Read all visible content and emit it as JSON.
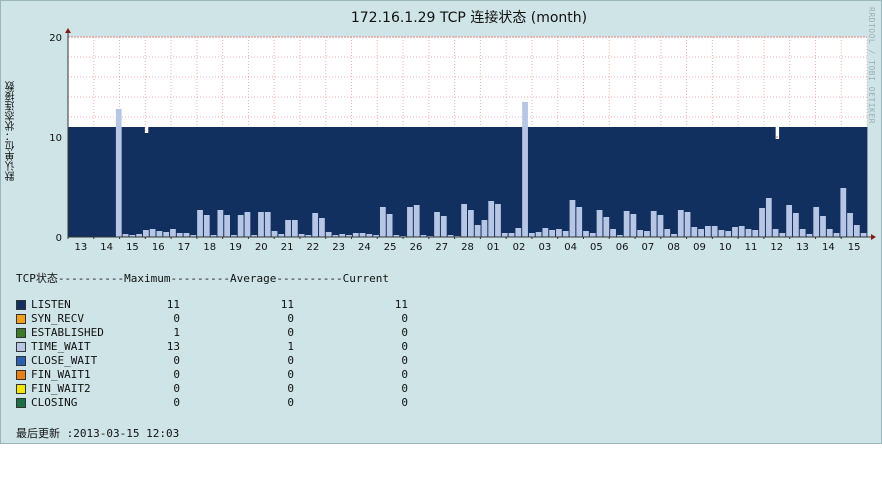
{
  "header": {
    "title": "172.16.1.29 TCP 连接状态 (month)",
    "watermark": "RRDTOOL / TOBI OETIKER",
    "ylabel": "默认单位：状态连接数"
  },
  "chart_data": {
    "type": "bar",
    "title": "172.16.1.29 TCP 连接状态 (month)",
    "ylabel": "默认单位：状态连接数",
    "xlabel": "",
    "ylim": [
      0,
      20
    ],
    "yticks": [
      0,
      10,
      20
    ],
    "grid": true,
    "x_tick_labels": [
      "13",
      "14",
      "15",
      "16",
      "17",
      "18",
      "19",
      "20",
      "21",
      "22",
      "23",
      "24",
      "25",
      "26",
      "27",
      "28",
      "01",
      "02",
      "03",
      "04",
      "05",
      "06",
      "07",
      "08",
      "09",
      "10",
      "11",
      "12",
      "13",
      "14",
      "15"
    ],
    "series": [
      {
        "name": "LISTEN",
        "color": "#12305f",
        "values": [
          11,
          11,
          11,
          11,
          11,
          11,
          11,
          11,
          11,
          11,
          11,
          11,
          11,
          11,
          11,
          11,
          11,
          11,
          11,
          11,
          10.4,
          11,
          11,
          11,
          11,
          11,
          11,
          11,
          11,
          11,
          11,
          11,
          11,
          11,
          11,
          11,
          11,
          11,
          11,
          11,
          11,
          11,
          11,
          11,
          11,
          11,
          11,
          11,
          11,
          11,
          11,
          11,
          11,
          11,
          11,
          11,
          11,
          11,
          11,
          11,
          11,
          11,
          11,
          11,
          11,
          11,
          11,
          11,
          11,
          11,
          11,
          11,
          11,
          11,
          11,
          11,
          11,
          11,
          11,
          11,
          11,
          11,
          11,
          11,
          11,
          11,
          11,
          11,
          11,
          11,
          11,
          11,
          11,
          11,
          11,
          11,
          11,
          11,
          11,
          11,
          11,
          11,
          11,
          11,
          11,
          11,
          11,
          11,
          11,
          11,
          11,
          11,
          11,
          11,
          11,
          11,
          11,
          11,
          11,
          11,
          11,
          11,
          11,
          11,
          11,
          11,
          11,
          11,
          11,
          11,
          11,
          11,
          11,
          11,
          11,
          11,
          11,
          11,
          11,
          11,
          11,
          11,
          11,
          11,
          11,
          11,
          11,
          11,
          11,
          11,
          11,
          11,
          11,
          11,
          11,
          11,
          11,
          11,
          11,
          11,
          11,
          11,
          11,
          11,
          11,
          11,
          11,
          11,
          11,
          11,
          11,
          11,
          11,
          11,
          11,
          11,
          11,
          11,
          11,
          11,
          11,
          11,
          11,
          11,
          11,
          9.8,
          11,
          11,
          11,
          11,
          11,
          11,
          11,
          11,
          11,
          11,
          11,
          11,
          11,
          11,
          11,
          11,
          11,
          11,
          11,
          11,
          11,
          11,
          11
        ]
      },
      {
        "name": "TIME_WAIT",
        "color": "#b8c6e6",
        "values": [
          0,
          0,
          0,
          0,
          0,
          0,
          0,
          12.8,
          0.3,
          0.2,
          0.3,
          0.7,
          0.8,
          0.6,
          0.5,
          0.8,
          0.4,
          0.4,
          0.2,
          2.7,
          2.2,
          0.2,
          2.7,
          2.2,
          0.2,
          2.2,
          2.5,
          0.2,
          2.5,
          2.5,
          0.6,
          0.3,
          1.7,
          1.7,
          0.3,
          0.2,
          2.4,
          1.9,
          0.5,
          0.2,
          0.3,
          0.2,
          0.4,
          0.4,
          0.3,
          0.2,
          3.0,
          2.3,
          0.2,
          0.1,
          3.0,
          3.2,
          0.2,
          0.1,
          2.5,
          2.1,
          0.2,
          0.1,
          3.3,
          2.7,
          1.2,
          1.7,
          3.6,
          3.3,
          0.4,
          0.4,
          0.9,
          13.5,
          0.4,
          0.5,
          0.9,
          0.7,
          0.8,
          0.6,
          3.7,
          3.0,
          0.6,
          0.4,
          2.7,
          2.0,
          0.8,
          0.2,
          2.6,
          2.3,
          0.7,
          0.6,
          2.6,
          2.2,
          0.8,
          0.3,
          2.7,
          2.5,
          1.0,
          0.8,
          1.1,
          1.1,
          0.7,
          0.6,
          1.0,
          1.1,
          0.8,
          0.7,
          2.9,
          3.9,
          0.8,
          0.4,
          3.2,
          2.4,
          0.8,
          0.3,
          3.0,
          2.1,
          0.8,
          0.4,
          4.9,
          2.4,
          1.2,
          0.4
        ]
      },
      {
        "name": "SYN_RECV",
        "color": "#f0a01c",
        "values": []
      },
      {
        "name": "FIN_WAIT1",
        "color": "#e8801c",
        "values": []
      }
    ]
  },
  "legend": {
    "header": "TCP状态----------Maximum---------Average----------Current",
    "rows": [
      {
        "name": "LISTEN",
        "color": "#12305f",
        "max": "11",
        "avg": "11",
        "cur": "11"
      },
      {
        "name": "SYN_RECV",
        "color": "#f0a01c",
        "max": "0",
        "avg": "0",
        "cur": "0"
      },
      {
        "name": "ESTABLISHED",
        "color": "#3a7a28",
        "max": "1",
        "avg": "0",
        "cur": "0"
      },
      {
        "name": "TIME_WAIT",
        "color": "#b8c6e6",
        "max": "13",
        "avg": "1",
        "cur": "0"
      },
      {
        "name": "CLOSE_WAIT",
        "color": "#2a5fb0",
        "max": "0",
        "avg": "0",
        "cur": "0"
      },
      {
        "name": "FIN_WAIT1",
        "color": "#e8801c",
        "max": "0",
        "avg": "0",
        "cur": "0"
      },
      {
        "name": "FIN_WAIT2",
        "color": "#f5e60a",
        "max": "0",
        "avg": "0",
        "cur": "0"
      },
      {
        "name": "CLOSING",
        "color": "#1c6e44",
        "max": "0",
        "avg": "0",
        "cur": "0"
      }
    ]
  },
  "footer": {
    "last_update": "最后更新 :2013-03-15 12:03"
  }
}
